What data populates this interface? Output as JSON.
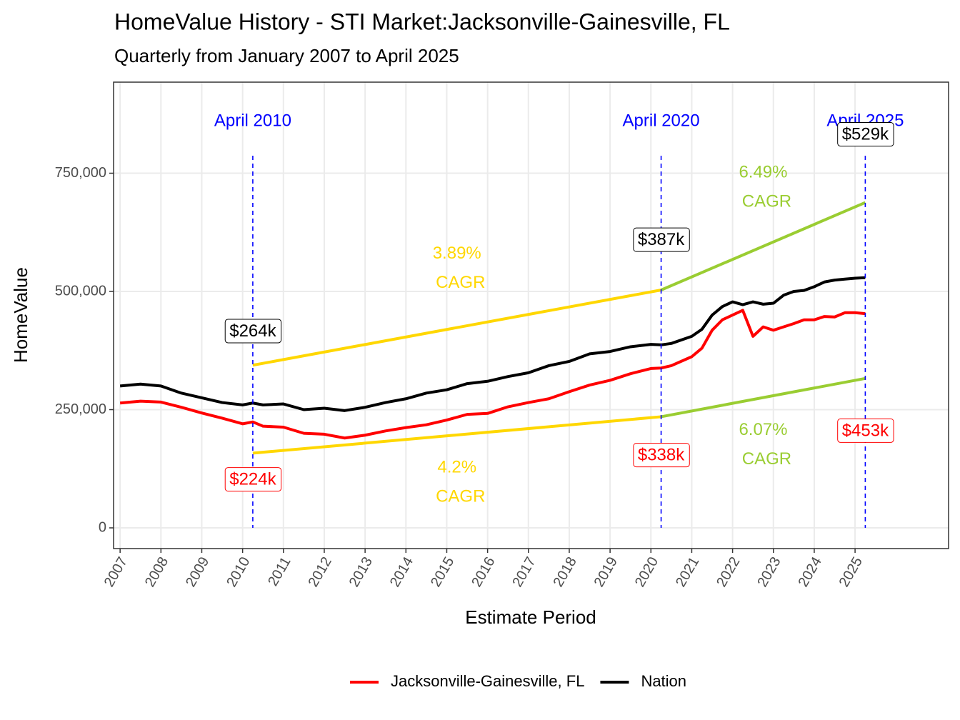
{
  "chart_data": {
    "type": "line",
    "title": "HomeValue History - STI Market:Jacksonville-Gainesville, FL",
    "subtitle": "Quarterly from January 2007 to April 2025",
    "x_label": "Estimate Period",
    "y_label": "HomeValue",
    "x": [
      2007,
      2007.5,
      2008,
      2008.5,
      2009,
      2009.5,
      2010,
      2010.25,
      2010.5,
      2011,
      2011.5,
      2012,
      2012.5,
      2013,
      2013.5,
      2014,
      2014.5,
      2015,
      2015.5,
      2016,
      2016.5,
      2017,
      2017.5,
      2018,
      2018.5,
      2019,
      2019.5,
      2020,
      2020.25,
      2020.5,
      2021,
      2021.25,
      2021.5,
      2021.75,
      2022,
      2022.25,
      2022.5,
      2022.75,
      2023,
      2023.25,
      2023.5,
      2023.75,
      2024,
      2024.25,
      2024.5,
      2024.75,
      2025,
      2025.25
    ],
    "series": [
      {
        "name": "Jacksonville-Gainesville, FL",
        "color": "#ff0000",
        "values": [
          264000,
          268000,
          266000,
          255000,
          243000,
          232000,
          220000,
          224000,
          215000,
          213000,
          200000,
          198000,
          190000,
          196000,
          205000,
          212000,
          218000,
          228000,
          240000,
          242000,
          256000,
          265000,
          273000,
          288000,
          302000,
          312000,
          326000,
          337000,
          338000,
          343000,
          362000,
          380000,
          418000,
          440000,
          450000,
          460000,
          405000,
          425000,
          418000,
          425000,
          432000,
          440000,
          440000,
          447000,
          446000,
          455000,
          455000,
          453000
        ],
        "point_labels": [
          {
            "x": 2010.25,
            "value": 224000,
            "label": "$224k"
          },
          {
            "x": 2020.25,
            "value": 338000,
            "label": "$338k"
          },
          {
            "x": 2025.25,
            "value": 453000,
            "label": "$453k"
          }
        ]
      },
      {
        "name": "Nation",
        "color": "#000000",
        "values": [
          300000,
          304000,
          300000,
          285000,
          275000,
          265000,
          260000,
          264000,
          260000,
          262000,
          250000,
          253000,
          248000,
          255000,
          265000,
          273000,
          285000,
          292000,
          305000,
          310000,
          320000,
          328000,
          343000,
          352000,
          368000,
          373000,
          383000,
          388000,
          387000,
          390000,
          405000,
          420000,
          450000,
          468000,
          478000,
          472000,
          478000,
          473000,
          475000,
          492000,
          500000,
          502000,
          510000,
          520000,
          524000,
          526000,
          528000,
          529000
        ],
        "point_labels": [
          {
            "x": 2010.25,
            "value": 264000,
            "label": "$264k"
          },
          {
            "x": 2020.25,
            "value": 387000,
            "label": "$387k"
          },
          {
            "x": 2025.25,
            "value": 529000,
            "label": "$529k"
          }
        ]
      }
    ],
    "trend_lines": [
      {
        "color": "#ffd700",
        "x": [
          2010.25,
          2020.25
        ],
        "values": [
          344000,
          503000
        ],
        "label": [
          "3.89%",
          "CAGR"
        ]
      },
      {
        "color": "#ffd700",
        "x": [
          2010.25,
          2020.25
        ],
        "values": [
          158000,
          235000
        ],
        "label": [
          "4.2%",
          "CAGR"
        ]
      },
      {
        "color": "#9acd32",
        "x": [
          2020.25,
          2025.25
        ],
        "values": [
          503000,
          688000
        ],
        "label": [
          "6.49%",
          "CAGR"
        ]
      },
      {
        "color": "#9acd32",
        "x": [
          2020.25,
          2025.25
        ],
        "values": [
          235000,
          316000
        ],
        "label": [
          "6.07%",
          "CAGR"
        ]
      }
    ],
    "events": [
      {
        "x": 2010.25,
        "label": "April 2010"
      },
      {
        "x": 2020.25,
        "label": "April 2020"
      },
      {
        "x": 2025.25,
        "label": "April 2025"
      }
    ],
    "event_color": "#0000ff",
    "xlim": [
      2006.84,
      2027.29
    ],
    "xticks": [
      2007,
      2008,
      2009,
      2010,
      2011,
      2012,
      2013,
      2014,
      2015,
      2016,
      2017,
      2018,
      2019,
      2020,
      2021,
      2022,
      2023,
      2024,
      2025
    ],
    "ylim": [
      -43800,
      942600
    ],
    "yticks": [
      0,
      {
        "value": 250000,
        "label": "250,000"
      },
      {
        "value": 500000,
        "label": "500,000"
      },
      {
        "value": 750000,
        "label": "750,000"
      }
    ],
    "grid": true,
    "legend": "bottom"
  }
}
